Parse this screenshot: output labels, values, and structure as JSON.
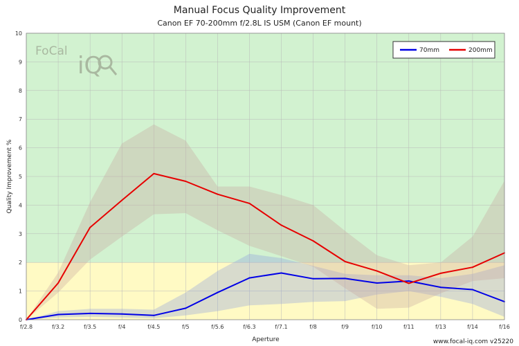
{
  "title": "Manual Focus Quality Improvement",
  "subtitle": "Canon EF 70-200mm f/2.8L IS USM (Canon EF mount)",
  "footer": "www.focal-iq.com  v25220",
  "logo": {
    "text_top": "FoCal",
    "text_main": "iQ"
  },
  "chart_data": {
    "type": "line",
    "title": "Manual Focus Quality Improvement",
    "subtitle": "Canon EF 70-200mm f/2.8L IS USM (Canon EF mount)",
    "xlabel": "Aperture",
    "ylabel": "Quality Improvement %",
    "ylim": [
      0,
      10
    ],
    "yticks": [
      0,
      1,
      2,
      3,
      4,
      5,
      6,
      7,
      8,
      9,
      10
    ],
    "categories": [
      "f/2.8",
      "f/3.2",
      "f/3.5",
      "f/4",
      "f/4.5",
      "f/5",
      "f/5.6",
      "f/6.3",
      "f/7.1",
      "f/8",
      "f/9",
      "f/10",
      "f/11",
      "f/13",
      "f/14",
      "f/16"
    ],
    "grid": true,
    "legend_position": "top-right",
    "zones": [
      {
        "from": 0,
        "to": 2,
        "color": "#fffac4"
      },
      {
        "from": 2,
        "to": 10,
        "color": "#d2f2d0"
      }
    ],
    "series": [
      {
        "name": "70mm",
        "color": "#0000e6",
        "values": [
          0,
          0.18,
          0.22,
          0.2,
          0.15,
          0.4,
          0.95,
          1.46,
          1.63,
          1.43,
          1.44,
          1.28,
          1.35,
          1.13,
          1.05,
          0.63
        ],
        "band_upper": [
          0,
          0.3,
          0.38,
          0.38,
          0.35,
          0.95,
          1.7,
          2.3,
          2.15,
          1.88,
          1.6,
          1.55,
          1.55,
          1.45,
          1.6,
          1.9
        ],
        "band_lower": [
          0,
          0.08,
          0.1,
          0.08,
          0.05,
          0.15,
          0.3,
          0.5,
          0.55,
          0.62,
          0.65,
          0.88,
          1.0,
          0.8,
          0.55,
          0.1
        ],
        "band_color": "#8fa0e0"
      },
      {
        "name": "200mm",
        "color": "#e60000",
        "values": [
          0,
          1.28,
          3.22,
          4.17,
          5.1,
          4.83,
          4.38,
          4.06,
          3.3,
          2.75,
          2.03,
          1.7,
          1.27,
          1.62,
          1.83,
          2.33
        ],
        "band_upper": [
          0,
          1.65,
          4.1,
          6.15,
          6.82,
          6.25,
          4.65,
          4.65,
          4.35,
          4.0,
          3.1,
          2.25,
          1.9,
          2.0,
          2.9,
          4.85
        ],
        "band_lower": [
          0,
          0.95,
          2.1,
          2.9,
          3.68,
          3.72,
          3.12,
          2.58,
          2.22,
          1.85,
          1.1,
          0.38,
          0.42,
          0.92,
          1.35,
          1.45
        ],
        "band_color": "#c9a8a0"
      }
    ]
  }
}
